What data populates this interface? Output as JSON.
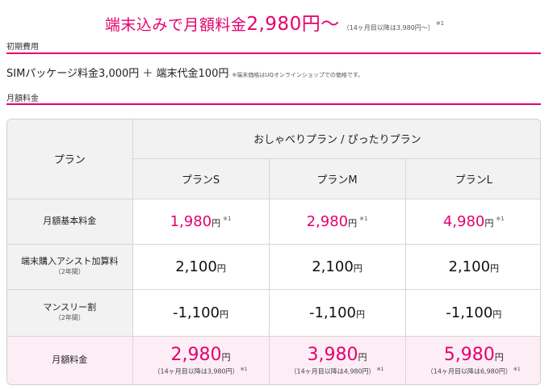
{
  "headline": {
    "main_prefix": "端末込みで月額料金",
    "main_price": "2,980円〜",
    "sub": "（14ヶ月目以降は3,980円〜）",
    "mark": "※1",
    "color": "#e5006e"
  },
  "sections": {
    "initial_label": "初期費用",
    "monthly_label": "月額料金"
  },
  "initial": {
    "text": "SIMパッケージ料金3,000円 ＋ 端末代金100円",
    "note": "※端末価格はUQオンラインショップでの価格です。"
  },
  "table": {
    "plan_header": "プラン",
    "group_header": "おしゃべりプラン / ぴったりプラン",
    "plans": [
      "プランS",
      "プランM",
      "プランL"
    ],
    "rows": [
      {
        "label": "月額基本料金",
        "label_small": "",
        "values": [
          "1,980",
          "2,980",
          "4,980"
        ],
        "unit": "円",
        "mark": "※1",
        "highlight": true
      },
      {
        "label": "端末購入アシスト加算料",
        "label_small": "（2年間）",
        "values": [
          "2,100",
          "2,100",
          "2,100"
        ],
        "unit": "円",
        "mark": "",
        "highlight": false
      },
      {
        "label": "マンスリー割",
        "label_small": "（2年間）",
        "values": [
          "-1,100",
          "-1,100",
          "-1,100"
        ],
        "unit": "円",
        "mark": "",
        "highlight": false
      }
    ],
    "total": {
      "label": "月額料金",
      "values": [
        "2,980",
        "3,980",
        "5,980"
      ],
      "unit": "円",
      "notes": [
        "（14ヶ月目以降は3,980円）",
        "（14ヶ月目以降は4,980円）",
        "（14ヶ月目以降は6,980円）"
      ],
      "mark": "※1"
    }
  }
}
